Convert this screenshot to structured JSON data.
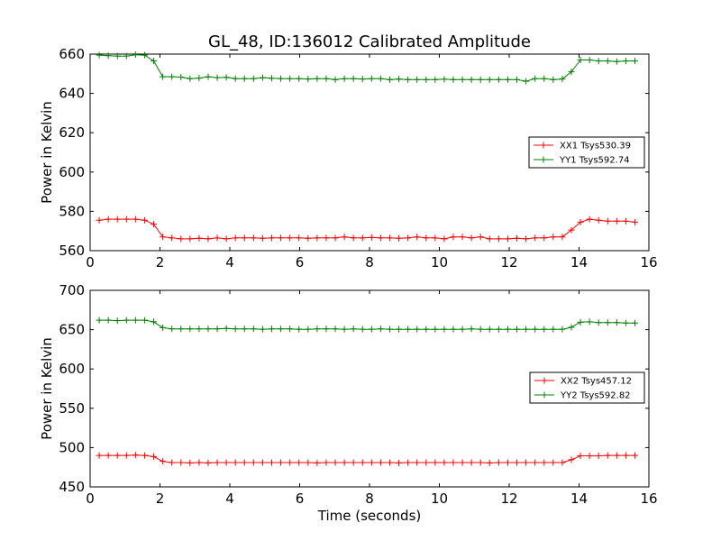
{
  "chart_data": [
    {
      "type": "line",
      "title": "GL_48, ID:136012 Calibrated Amplitude",
      "xlabel": "",
      "ylabel": "Power in Kelvin",
      "xlim": [
        0,
        16
      ],
      "ylim": [
        560,
        660
      ],
      "xticks": [
        "0",
        "2",
        "4",
        "6",
        "8",
        "10",
        "12",
        "14",
        "16"
      ],
      "yticks": [
        "560",
        "580",
        "600",
        "620",
        "640",
        "660"
      ],
      "legend_position": "center-right",
      "x": [
        0.26,
        0.52,
        0.78,
        1.04,
        1.3,
        1.56,
        1.82,
        2.08,
        2.34,
        2.6,
        2.86,
        3.12,
        3.38,
        3.64,
        3.9,
        4.16,
        4.42,
        4.68,
        4.94,
        5.2,
        5.46,
        5.72,
        5.98,
        6.24,
        6.5,
        6.76,
        7.02,
        7.28,
        7.54,
        7.8,
        8.06,
        8.32,
        8.58,
        8.84,
        9.1,
        9.36,
        9.62,
        9.88,
        10.14,
        10.4,
        10.66,
        10.92,
        11.18,
        11.44,
        11.7,
        11.96,
        12.22,
        12.48,
        12.74,
        13.0,
        13.26,
        13.52,
        13.78,
        14.04,
        14.3,
        14.56,
        14.82,
        15.08,
        15.34,
        15.6
      ],
      "series": [
        {
          "name": "XX1 Tsys530.39",
          "color": "#ff0000",
          "values": [
            575.5,
            576.0,
            576.0,
            576.0,
            576.0,
            575.5,
            573.5,
            567.0,
            566.5,
            566.0,
            566.0,
            566.3,
            566.0,
            566.5,
            566.0,
            566.5,
            566.5,
            566.5,
            566.3,
            566.5,
            566.5,
            566.5,
            566.5,
            566.3,
            566.5,
            566.5,
            566.5,
            567.0,
            566.5,
            566.5,
            566.7,
            566.5,
            566.5,
            566.3,
            566.5,
            567.0,
            566.5,
            566.5,
            566.0,
            567.0,
            567.0,
            566.5,
            567.0,
            566.0,
            566.0,
            566.0,
            566.3,
            566.0,
            566.5,
            566.5,
            567.0,
            567.0,
            570.5,
            574.5,
            576.0,
            575.5,
            575.0,
            575.0,
            575.0,
            574.5
          ]
        },
        {
          "name": "YY1 Tsys592.74",
          "color": "#008000",
          "values": [
            659.5,
            659.2,
            659.0,
            659.0,
            659.7,
            659.5,
            656.5,
            648.5,
            648.5,
            648.3,
            647.5,
            647.8,
            648.5,
            648.0,
            648.2,
            647.5,
            647.5,
            647.5,
            648.0,
            647.7,
            647.5,
            647.5,
            647.5,
            647.3,
            647.5,
            647.5,
            647.0,
            647.5,
            647.5,
            647.3,
            647.5,
            647.5,
            647.0,
            647.3,
            647.0,
            647.0,
            647.0,
            647.0,
            647.2,
            647.0,
            647.0,
            647.0,
            647.0,
            647.0,
            647.0,
            647.0,
            647.0,
            646.2,
            647.5,
            647.5,
            647.0,
            647.3,
            651.0,
            657.0,
            657.0,
            656.5,
            656.5,
            656.2,
            656.5,
            656.5
          ]
        }
      ]
    },
    {
      "type": "line",
      "title": "",
      "xlabel": "Time (seconds)",
      "ylabel": "Power in Kelvin",
      "xlim": [
        0,
        16
      ],
      "ylim": [
        450,
        700
      ],
      "xticks": [
        "0",
        "2",
        "4",
        "6",
        "8",
        "10",
        "12",
        "14",
        "16"
      ],
      "yticks": [
        "450",
        "500",
        "550",
        "600",
        "650",
        "700"
      ],
      "legend_position": "center-right",
      "x": [
        0.26,
        0.52,
        0.78,
        1.04,
        1.3,
        1.56,
        1.82,
        2.08,
        2.34,
        2.6,
        2.86,
        3.12,
        3.38,
        3.64,
        3.9,
        4.16,
        4.42,
        4.68,
        4.94,
        5.2,
        5.46,
        5.72,
        5.98,
        6.24,
        6.5,
        6.76,
        7.02,
        7.28,
        7.54,
        7.8,
        8.06,
        8.32,
        8.58,
        8.84,
        9.1,
        9.36,
        9.62,
        9.88,
        10.14,
        10.4,
        10.66,
        10.92,
        11.18,
        11.44,
        11.7,
        11.96,
        12.22,
        12.48,
        12.74,
        13.0,
        13.26,
        13.52,
        13.78,
        14.04,
        14.3,
        14.56,
        14.82,
        15.08,
        15.34,
        15.6
      ],
      "series": [
        {
          "name": "XX2 Tsys457.12",
          "color": "#ff0000",
          "values": [
            490.0,
            490.0,
            490.0,
            490.0,
            490.5,
            490.0,
            488.5,
            482.5,
            481.0,
            481.0,
            480.5,
            481.0,
            480.5,
            481.0,
            481.0,
            481.0,
            481.0,
            481.0,
            481.0,
            481.0,
            481.0,
            481.0,
            481.0,
            481.0,
            480.5,
            481.0,
            481.0,
            481.0,
            481.0,
            481.0,
            481.0,
            481.0,
            481.0,
            480.5,
            481.0,
            481.0,
            481.0,
            481.0,
            481.0,
            481.0,
            481.0,
            481.0,
            481.0,
            480.5,
            481.0,
            481.0,
            481.0,
            481.0,
            481.0,
            481.0,
            481.0,
            481.0,
            484.5,
            489.5,
            489.5,
            489.5,
            490.0,
            490.0,
            490.0,
            490.0
          ]
        },
        {
          "name": "YY2 Tsys592.82",
          "color": "#008000",
          "values": [
            662.0,
            662.0,
            661.5,
            662.0,
            662.0,
            662.0,
            660.0,
            652.5,
            651.0,
            651.0,
            651.0,
            651.0,
            651.0,
            651.0,
            651.5,
            651.0,
            651.0,
            651.0,
            650.5,
            651.0,
            651.0,
            651.0,
            650.5,
            650.5,
            651.0,
            651.0,
            651.0,
            650.5,
            651.0,
            650.5,
            650.5,
            651.0,
            650.5,
            650.5,
            650.5,
            650.5,
            650.5,
            650.5,
            650.5,
            650.5,
            650.5,
            651.0,
            650.5,
            650.5,
            650.5,
            650.5,
            650.5,
            650.5,
            650.5,
            650.5,
            650.5,
            650.5,
            653.0,
            659.5,
            660.0,
            659.0,
            659.0,
            659.0,
            658.5,
            658.5
          ]
        }
      ]
    }
  ]
}
